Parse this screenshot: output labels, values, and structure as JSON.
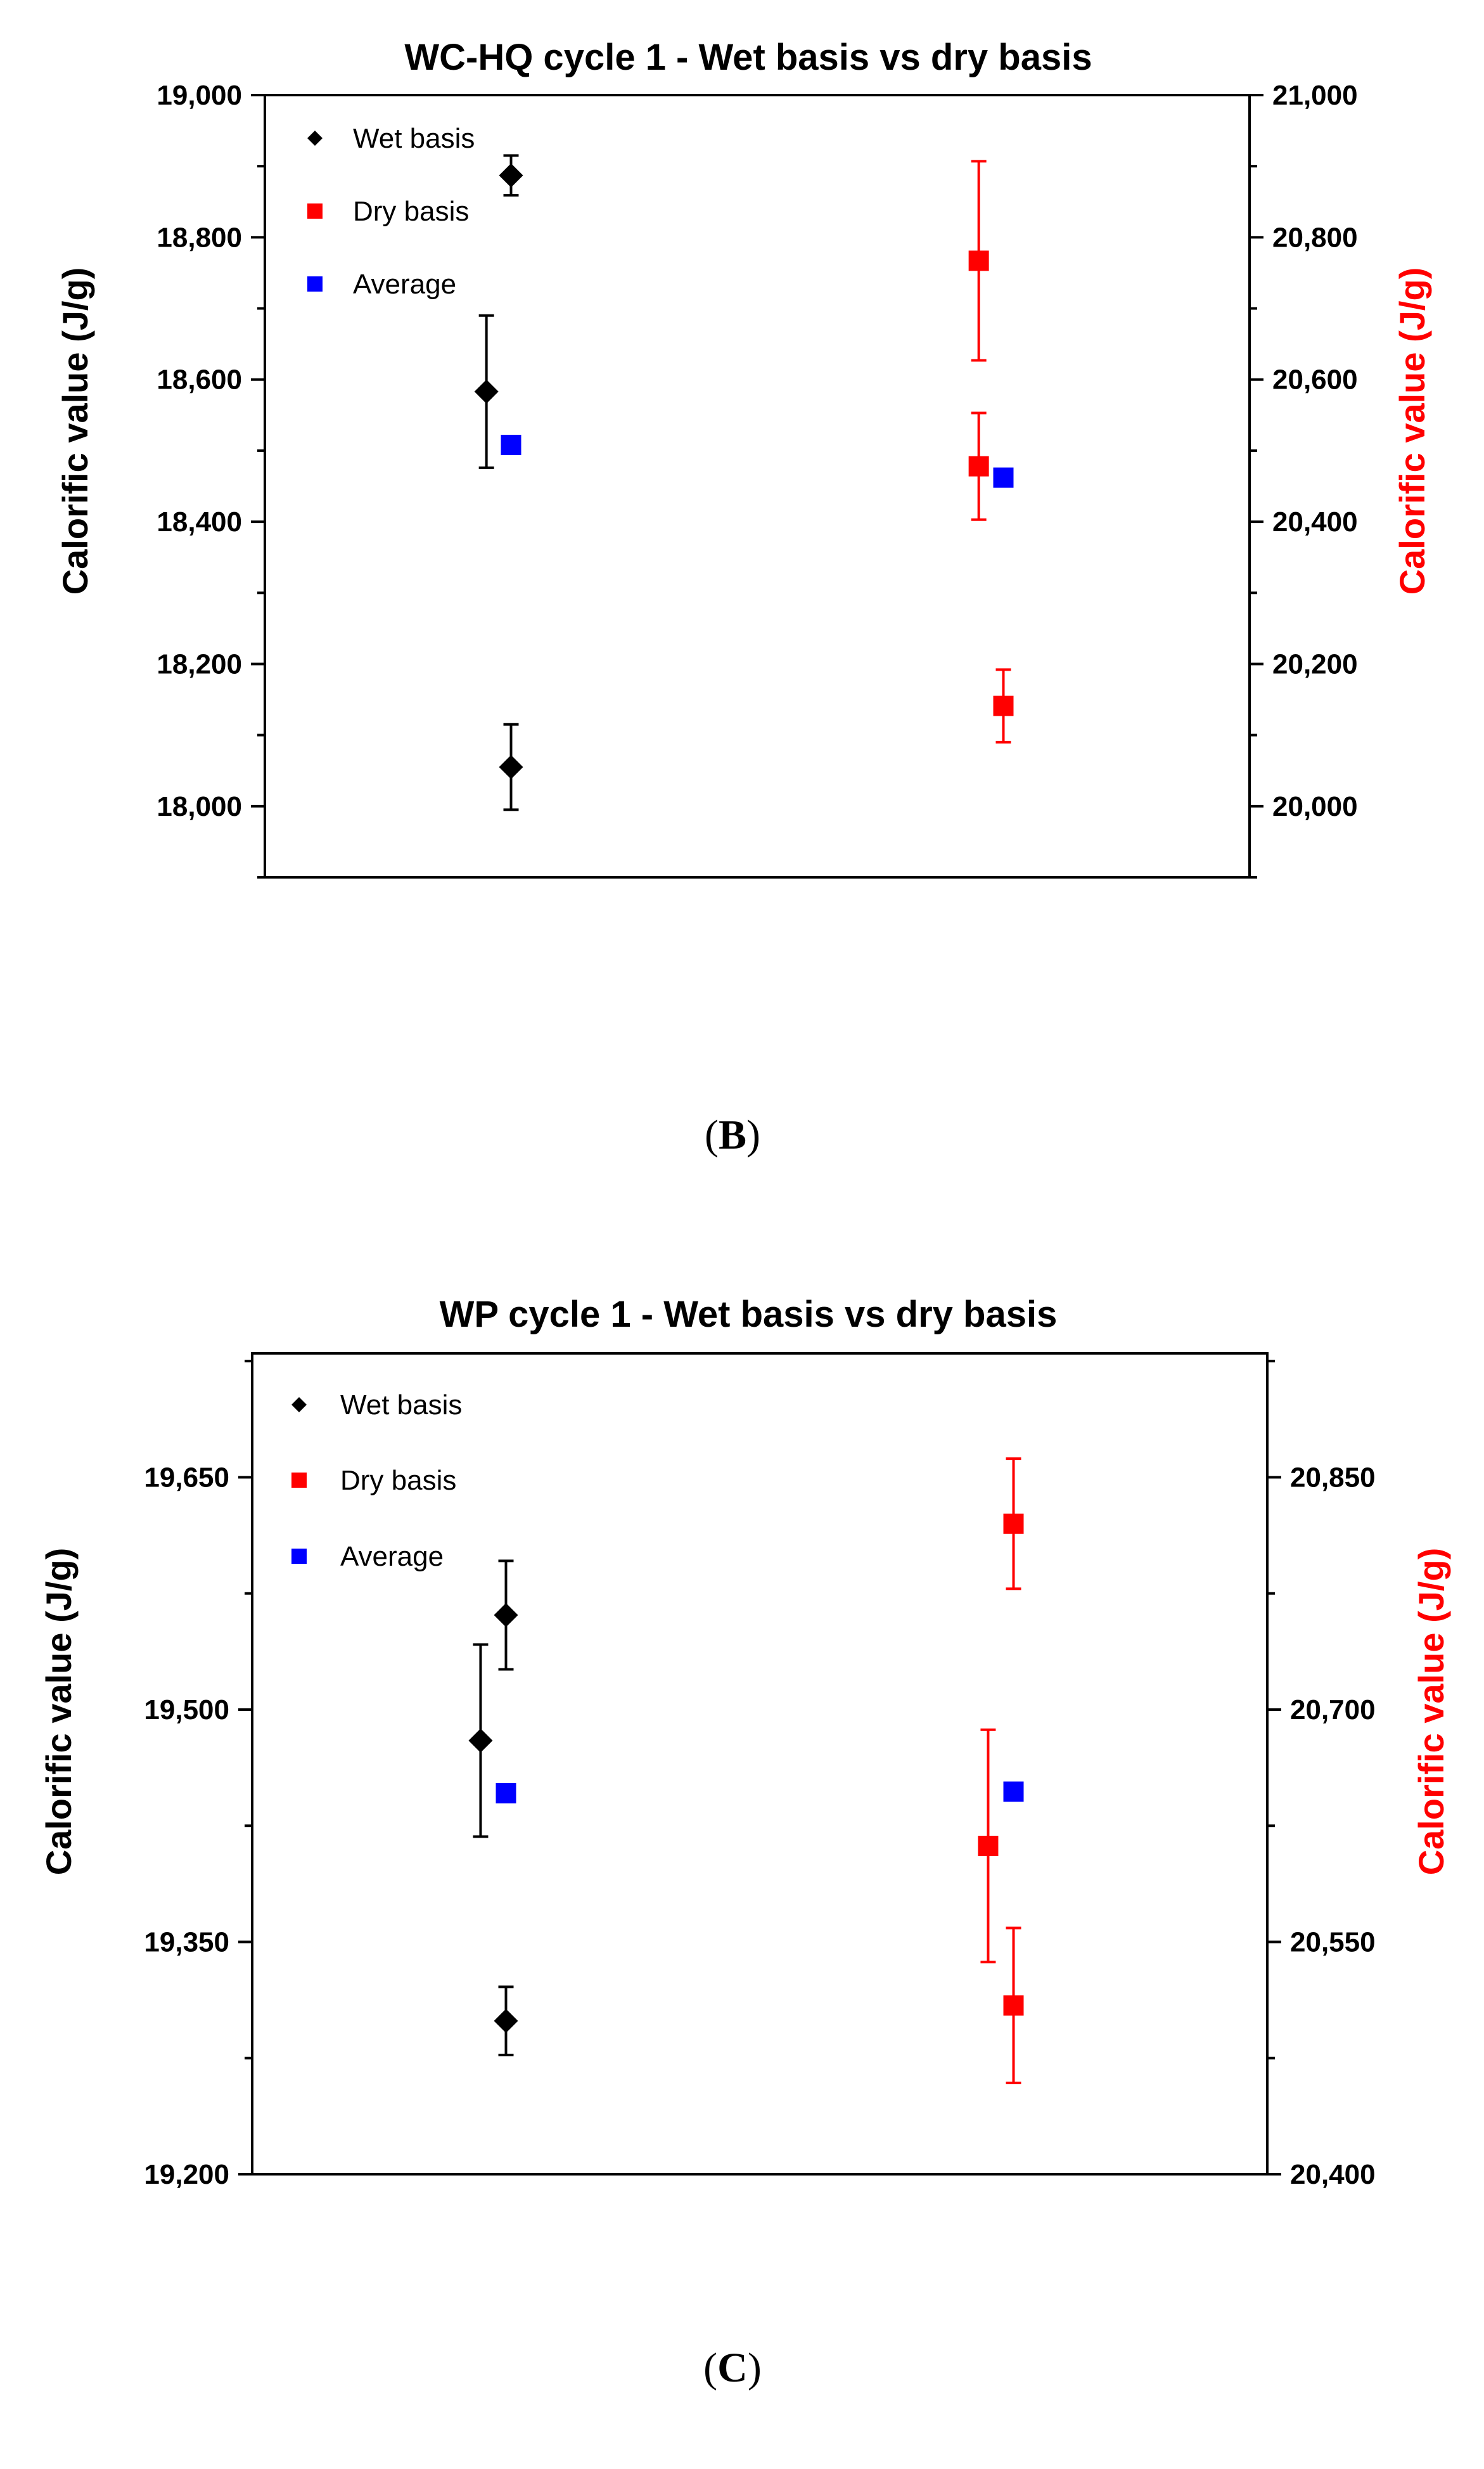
{
  "chart_data": [
    {
      "type": "scatter",
      "title": "WC-HQ cycle 1 - Wet basis vs dry basis",
      "caption_label": "B",
      "ylabel_left": "Calorific value (J/g)",
      "ylabel_right": "Calorific value (J/g)",
      "ylim_left": [
        17900,
        19000
      ],
      "ylim_right": [
        19900,
        21000
      ],
      "left_ticks": [
        18000,
        18200,
        18400,
        18600,
        18800,
        19000
      ],
      "left_tick_labels": [
        "18,000",
        "18,200",
        "18,400",
        "18,600",
        "18,800",
        "19,000"
      ],
      "right_ticks": [
        20000,
        20200,
        20400,
        20600,
        20800,
        21000
      ],
      "right_tick_labels": [
        "20,000",
        "20,200",
        "20,400",
        "20,600",
        "20,800",
        "21,000"
      ],
      "legend": [
        "Wet basis",
        "Dry basis",
        "Average"
      ],
      "legend_placement": "top-left",
      "colors": {
        "wet": "#000000",
        "dry": "#ff0000",
        "average": "#0000ff"
      },
      "series": [
        {
          "name": "Wet basis",
          "axis": "left",
          "marker": "diamond",
          "points": [
            {
              "x": 0.95,
              "y": 18583,
              "err": 107
            },
            {
              "x": 1.0,
              "y": 18887,
              "err": 28
            },
            {
              "x": 1.0,
              "y": 18055,
              "err": 60
            }
          ]
        },
        {
          "name": "Dry basis",
          "axis": "right",
          "marker": "square",
          "points": [
            {
              "x": 1.95,
              "y": 20767,
              "err": 140
            },
            {
              "x": 1.95,
              "y": 20478,
              "err": 75
            },
            {
              "x": 2.0,
              "y": 20141,
              "err": 51
            }
          ]
        },
        {
          "name": "Average",
          "axis": "mixed",
          "marker": "square",
          "points": [
            {
              "x": 1.0,
              "y": 18508,
              "axis": "left"
            },
            {
              "x": 2.0,
              "y": 20462,
              "axis": "right"
            }
          ]
        }
      ]
    },
    {
      "type": "scatter",
      "title": "WP cycle 1 - Wet basis vs dry basis",
      "caption_label": "C",
      "ylabel_left": "Calorific value (J/g)",
      "ylabel_right": "Calorific value (J/g)",
      "ylim_left": [
        19200,
        19730
      ],
      "ylim_right": [
        20400,
        20930
      ],
      "left_ticks": [
        19200,
        19350,
        19500,
        19650
      ],
      "left_tick_labels": [
        "19,200",
        "19,350",
        "19,500",
        "19,650"
      ],
      "right_ticks": [
        20400,
        20550,
        20700,
        20850
      ],
      "right_tick_labels": [
        "20,400",
        "20,550",
        "20,700",
        "20,850"
      ],
      "legend": [
        "Wet basis",
        "Dry basis",
        "Average"
      ],
      "legend_placement": "top-left",
      "colors": {
        "wet": "#000000",
        "dry": "#ff0000",
        "average": "#0000ff"
      },
      "series": [
        {
          "name": "Wet basis",
          "axis": "left",
          "marker": "diamond",
          "points": [
            {
              "x": 0.95,
              "y": 19480,
              "err": 62
            },
            {
              "x": 1.0,
              "y": 19561,
              "err": 35
            },
            {
              "x": 1.0,
              "y": 19299,
              "err": 22
            }
          ]
        },
        {
          "name": "Dry basis",
          "axis": "right",
          "marker": "square",
          "points": [
            {
              "x": 2.0,
              "y": 20820,
              "err": 42
            },
            {
              "x": 1.95,
              "y": 20612,
              "err": 75
            },
            {
              "x": 2.0,
              "y": 20509,
              "err": 50
            }
          ]
        },
        {
          "name": "Average",
          "axis": "mixed",
          "marker": "square",
          "points": [
            {
              "x": 1.0,
              "y": 19446,
              "axis": "left"
            },
            {
              "x": 2.0,
              "y": 20647,
              "axis": "right"
            }
          ]
        }
      ]
    }
  ]
}
